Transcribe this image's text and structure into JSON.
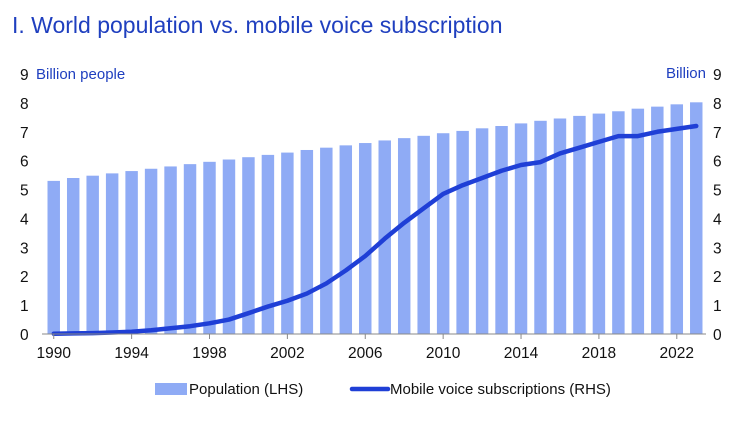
{
  "title": "I. World population vs. mobile voice subscription",
  "chart_data": {
    "type": "bar+line",
    "title": "I. World population vs. mobile voice subscription",
    "x": [
      1990,
      1991,
      1992,
      1993,
      1994,
      1995,
      1996,
      1997,
      1998,
      1999,
      2000,
      2001,
      2002,
      2003,
      2004,
      2005,
      2006,
      2007,
      2008,
      2009,
      2010,
      2011,
      2012,
      2013,
      2014,
      2015,
      2016,
      2017,
      2018,
      2019,
      2020,
      2021,
      2022,
      2023
    ],
    "x_tick_labels": [
      "1990",
      "1994",
      "1998",
      "2002",
      "2006",
      "2010",
      "2014",
      "2018",
      "2022"
    ],
    "left_axis": {
      "label": "Billion people",
      "ylim": [
        0,
        9
      ],
      "ticks": [
        "0",
        "1",
        "2",
        "3",
        "4",
        "5",
        "6",
        "7",
        "8",
        "9"
      ]
    },
    "right_axis": {
      "label": "Billion",
      "ylim": [
        0,
        9
      ],
      "ticks": [
        "0",
        "1",
        "2",
        "3",
        "4",
        "5",
        "6",
        "7",
        "8",
        "9"
      ]
    },
    "series": [
      {
        "name": "Population (LHS)",
        "type": "bar",
        "axis": "left",
        "color": "#8fabf5",
        "values": [
          5.3,
          5.4,
          5.48,
          5.56,
          5.64,
          5.72,
          5.8,
          5.88,
          5.96,
          6.04,
          6.12,
          6.2,
          6.28,
          6.37,
          6.45,
          6.53,
          6.61,
          6.7,
          6.78,
          6.86,
          6.95,
          7.03,
          7.12,
          7.2,
          7.29,
          7.38,
          7.46,
          7.55,
          7.63,
          7.71,
          7.8,
          7.87,
          7.95,
          8.02
        ]
      },
      {
        "name": "Mobile voice subscriptions (RHS)",
        "type": "line",
        "axis": "right",
        "color": "#1f3fd6",
        "values": [
          0.01,
          0.02,
          0.03,
          0.05,
          0.08,
          0.13,
          0.2,
          0.27,
          0.37,
          0.5,
          0.72,
          0.95,
          1.15,
          1.4,
          1.75,
          2.2,
          2.7,
          3.3,
          3.85,
          4.35,
          4.85,
          5.15,
          5.4,
          5.65,
          5.85,
          5.95,
          6.25,
          6.45,
          6.65,
          6.85,
          6.85,
          7.0,
          7.1,
          7.2
        ]
      }
    ],
    "legend": "bottom"
  }
}
